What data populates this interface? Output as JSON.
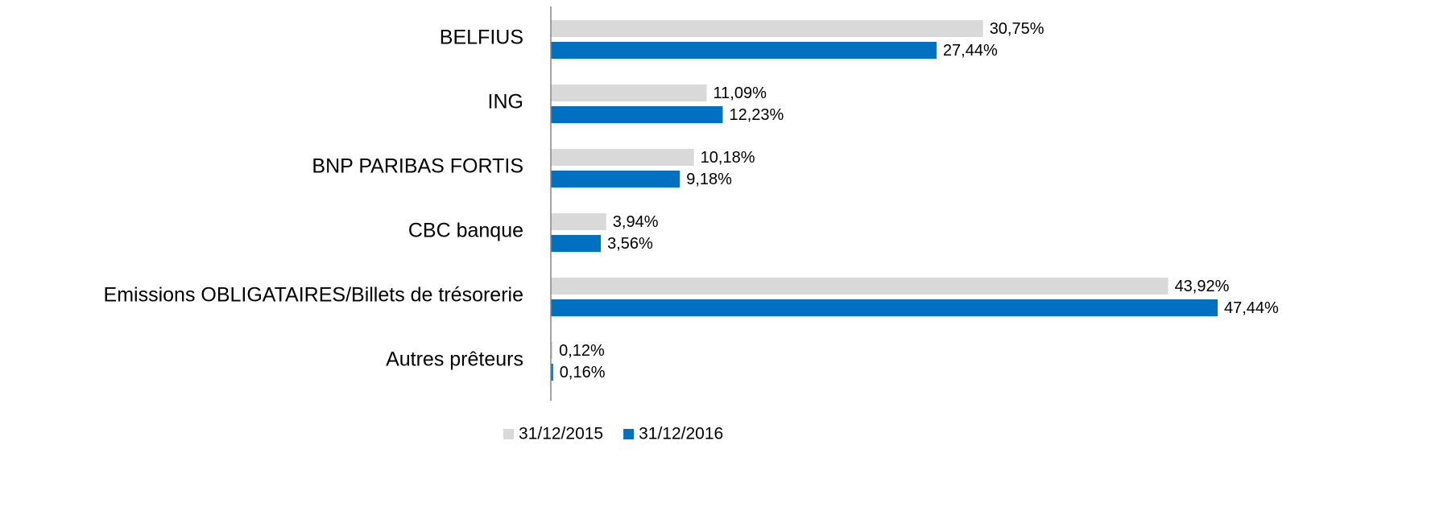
{
  "chart_data": {
    "type": "bar",
    "orientation": "horizontal",
    "categories": [
      "BELFIUS",
      "ING",
      "BNP PARIBAS FORTIS",
      "CBC banque",
      "Emissions OBLIGATAIRES/Billets de trésorerie",
      "Autres prêteurs"
    ],
    "series": [
      {
        "name": "31/12/2015",
        "color": "#d9d9d9",
        "values": [
          30.75,
          11.09,
          10.18,
          3.94,
          43.92,
          0.12
        ],
        "value_labels": [
          "30,75%",
          "11,09%",
          "10,18%",
          "3,94%",
          "43,92%",
          "0,12%"
        ]
      },
      {
        "name": "31/12/2016",
        "color": "#0070c0",
        "values": [
          27.44,
          12.23,
          9.18,
          3.56,
          47.44,
          0.16
        ],
        "value_labels": [
          "27,44%",
          "12,23%",
          "9,18%",
          "3,56%",
          "47,44%",
          "0,16%"
        ]
      }
    ],
    "legend": "bottom"
  }
}
